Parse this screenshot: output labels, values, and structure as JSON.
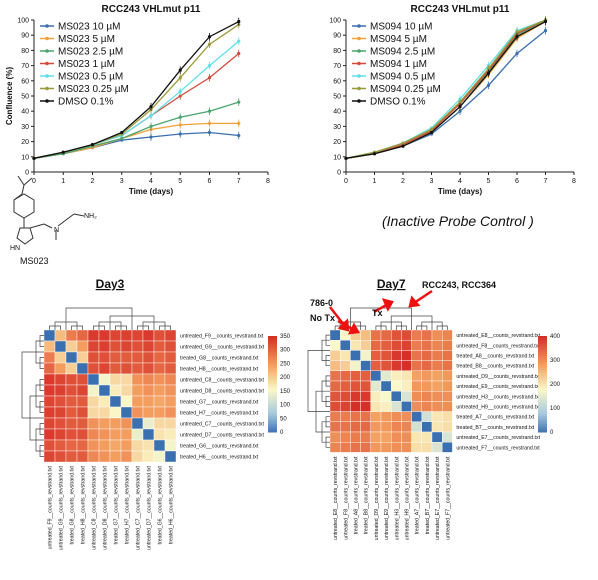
{
  "colors": {
    "c10": "#3a6fb0",
    "c5": "#f2a13a",
    "c25": "#4aa56e",
    "c1": "#d24a3a",
    "c05": "#5fe0e8",
    "c025": "#9a9a3a",
    "dmso": "#111111"
  },
  "chart_data": [
    {
      "type": "line",
      "title": "RCC243 VHLmut p11",
      "xlabel": "Time (days)",
      "ylabel": "Confluence (%)",
      "xlim": [
        0,
        8
      ],
      "ylim": [
        0,
        100
      ],
      "xticks": [
        0,
        1,
        2,
        3,
        4,
        5,
        6,
        7,
        8
      ],
      "yticks": [
        0,
        10,
        20,
        30,
        40,
        50,
        60,
        70,
        80,
        90,
        100
      ],
      "legend_position": "top-left",
      "x": [
        0,
        1,
        2,
        3,
        4,
        5,
        6,
        7
      ],
      "series": [
        {
          "name": "MS023 10 µM",
          "color": "#3a6fb0",
          "values": [
            9,
            12,
            16,
            21,
            23,
            25,
            26,
            24
          ]
        },
        {
          "name": "MS023 5 µM",
          "color": "#f2a13a",
          "values": [
            9,
            12,
            16,
            22,
            28,
            31,
            32,
            32
          ]
        },
        {
          "name": "MS023 2.5 µM",
          "color": "#4aa56e",
          "values": [
            9,
            12,
            17,
            22,
            30,
            36,
            40,
            46
          ]
        },
        {
          "name": "MS023 1 µM",
          "color": "#d24a3a",
          "values": [
            9,
            13,
            18,
            24,
            37,
            50,
            62,
            78
          ]
        },
        {
          "name": "MS023 0.5 µM",
          "color": "#5fe0e8",
          "values": [
            9,
            13,
            18,
            24,
            37,
            53,
            70,
            86
          ]
        },
        {
          "name": "MS023 0.25 µM",
          "color": "#9a9a3a",
          "values": [
            9,
            13,
            18,
            25,
            41,
            62,
            84,
            97
          ]
        },
        {
          "name": "DMSO 0.1%",
          "color": "#111111",
          "values": [
            9,
            13,
            18,
            26,
            43,
            67,
            89,
            99
          ]
        }
      ]
    },
    {
      "type": "line",
      "title": "RCC243 VHLmut p11",
      "xlabel": "Time (days)",
      "ylabel": "",
      "xlim": [
        0,
        8
      ],
      "ylim": [
        0,
        100
      ],
      "xticks": [
        0,
        1,
        2,
        3,
        4,
        5,
        6,
        7,
        8
      ],
      "yticks": [
        0,
        10,
        20,
        30,
        40,
        50,
        60,
        70,
        80,
        90,
        100
      ],
      "legend_position": "top-left",
      "x": [
        0,
        1,
        2,
        3,
        4,
        5,
        6,
        7
      ],
      "series": [
        {
          "name": "MS094 10 µM",
          "color": "#3a6fb0",
          "values": [
            9,
            12,
            17,
            25,
            40,
            57,
            78,
            93
          ]
        },
        {
          "name": "MS094 5 µM",
          "color": "#f2a13a",
          "values": [
            9,
            12,
            17,
            26,
            43,
            64,
            88,
            99
          ]
        },
        {
          "name": "MS094 2.5 µM",
          "color": "#4aa56e",
          "values": [
            9,
            12,
            18,
            27,
            45,
            66,
            90,
            100
          ]
        },
        {
          "name": "MS094 1 µM",
          "color": "#d24a3a",
          "values": [
            9,
            12,
            18,
            27,
            45,
            67,
            91,
            100
          ]
        },
        {
          "name": "MS094 0.5 µM",
          "color": "#5fe0e8",
          "values": [
            9,
            13,
            19,
            29,
            48,
            70,
            93,
            100
          ]
        },
        {
          "name": "MS094 0.25 µM",
          "color": "#9a9a3a",
          "values": [
            9,
            13,
            19,
            28,
            46,
            68,
            92,
            100
          ]
        },
        {
          "name": "DMSO 0.1%",
          "color": "#111111",
          "values": [
            9,
            12,
            17,
            26,
            43,
            65,
            89,
            99
          ]
        }
      ]
    },
    {
      "type": "heatmap",
      "title": "Day3",
      "labels": [
        "untreated_F9__counts_revstrand.txt",
        "untreated_G9__counts_revstrand.txt",
        "treated_G8__counts_revstrand.txt",
        "treated_H8__counts_revstrand.txt",
        "untreated_C8__counts_revstrand.txt",
        "untreated_D8__counts_revstrand.txt",
        "treated_G7__counts_revstrand.txt",
        "treated_H7__counts_revstrand.txt",
        "untreated_C7__counts_revstrand.txt",
        "untreated_D7__counts_revstrand.txt",
        "treated_G6__counts_revstrand.txt",
        "treated_H6__counts_revstrand.txt"
      ],
      "colorbar": {
        "min": 0,
        "max": 350,
        "ticks": [
          0,
          50,
          100,
          150,
          200,
          250,
          300,
          350
        ]
      },
      "matrix": [
        [
          0,
          220,
          280,
          300,
          340,
          340,
          330,
          335,
          330,
          340,
          320,
          330
        ],
        [
          220,
          0,
          200,
          250,
          330,
          335,
          320,
          330,
          320,
          330,
          310,
          320
        ],
        [
          280,
          200,
          0,
          200,
          320,
          320,
          310,
          310,
          310,
          320,
          300,
          310
        ],
        [
          300,
          250,
          200,
          0,
          320,
          330,
          310,
          320,
          310,
          320,
          300,
          310
        ],
        [
          340,
          330,
          320,
          320,
          0,
          150,
          190,
          190,
          260,
          270,
          260,
          270
        ],
        [
          340,
          335,
          320,
          330,
          150,
          0,
          170,
          190,
          250,
          260,
          250,
          260
        ],
        [
          330,
          320,
          310,
          310,
          190,
          170,
          0,
          160,
          250,
          250,
          240,
          250
        ],
        [
          335,
          330,
          310,
          320,
          190,
          190,
          160,
          0,
          260,
          250,
          250,
          260
        ],
        [
          330,
          320,
          310,
          310,
          260,
          250,
          250,
          260,
          0,
          140,
          190,
          190
        ],
        [
          340,
          330,
          320,
          320,
          270,
          260,
          250,
          250,
          140,
          0,
          180,
          170
        ],
        [
          320,
          310,
          300,
          300,
          260,
          250,
          240,
          250,
          190,
          180,
          0,
          150
        ],
        [
          330,
          320,
          310,
          310,
          270,
          260,
          250,
          260,
          190,
          170,
          150,
          0
        ]
      ]
    },
    {
      "type": "heatmap",
      "title": "Day7",
      "labels": [
        "untreated_E8__counts_revstrand.txt",
        "untreated_F8__counts_revstrand.txt",
        "treated_A8__counts_revstrand.txt",
        "treated_B8__counts_revstrand.txt",
        "untreated_D9__counts_revstrand.txt",
        "untreated_E9__counts_revstrand.txt",
        "untreated_H3__counts_revstrand.txt",
        "untreated_H9__counts_revstrand.txt",
        "treated_A7__counts_revstrand.txt",
        "treated_B7__counts_revstrand.txt",
        "untreated_E7__counts_revstrand.txt",
        "untreated_F7__counts_revstrand.txt"
      ],
      "colorbar": {
        "min": 0,
        "max": 400,
        "ticks": [
          0,
          100,
          200,
          300,
          400
        ]
      },
      "matrix": [
        [
          0,
          180,
          230,
          250,
          330,
          340,
          360,
          370,
          320,
          330,
          300,
          310
        ],
        [
          180,
          0,
          200,
          230,
          340,
          350,
          370,
          380,
          320,
          330,
          310,
          320
        ],
        [
          230,
          200,
          0,
          170,
          350,
          360,
          390,
          400,
          330,
          340,
          320,
          330
        ],
        [
          250,
          230,
          170,
          0,
          350,
          360,
          390,
          400,
          330,
          340,
          320,
          330
        ],
        [
          330,
          340,
          350,
          350,
          0,
          150,
          190,
          200,
          280,
          290,
          280,
          290
        ],
        [
          340,
          350,
          360,
          360,
          150,
          0,
          180,
          190,
          290,
          290,
          280,
          290
        ],
        [
          360,
          370,
          390,
          390,
          190,
          180,
          0,
          140,
          300,
          310,
          300,
          300
        ],
        [
          370,
          380,
          400,
          400,
          200,
          190,
          140,
          0,
          300,
          310,
          300,
          300
        ],
        [
          320,
          320,
          330,
          330,
          280,
          290,
          300,
          300,
          0,
          130,
          200,
          210
        ],
        [
          330,
          330,
          340,
          340,
          290,
          290,
          310,
          310,
          130,
          0,
          200,
          210
        ],
        [
          300,
          310,
          320,
          320,
          280,
          280,
          300,
          300,
          200,
          200,
          0,
          140
        ],
        [
          310,
          320,
          330,
          330,
          290,
          290,
          300,
          300,
          210,
          210,
          140,
          0
        ]
      ]
    }
  ],
  "annotations": {
    "inactive_probe": "(Inactive Probe Control )",
    "molecule_label": "MS023",
    "nh2": "NH₂",
    "hn": "HN",
    "n_atom": "N",
    "arrow_7860": "786-0",
    "arrow_notx": "No Tx",
    "arrow_tx": "Tx",
    "arrow_rcc": "RCC243, RCC364"
  }
}
